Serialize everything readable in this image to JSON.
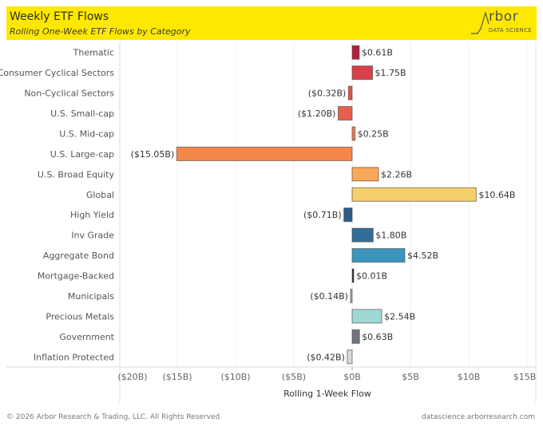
{
  "header": {
    "title": "Weekly ETF Flows",
    "subtitle": "Rolling One-Week ETF Flows by Category",
    "logo_word": "rbor",
    "logo_sub": "DATA SCIENCE",
    "banner_color": "#ffe800"
  },
  "footer": {
    "copyright": "© 2026 Arbor Research & Trading, LLC. All Rights Reserved",
    "url": "datascience.arborresearch.com"
  },
  "chart_data": {
    "type": "bar",
    "orientation": "horizontal",
    "title": "Weekly ETF Flows",
    "subtitle": "Rolling One-Week ETF Flows by Category",
    "xlabel": "Rolling 1-Week Flow",
    "ylabel": "",
    "xlim": [
      -20,
      15
    ],
    "units": "billions USD",
    "grid": "vertical",
    "xticks": [
      -20,
      -15,
      -10,
      -5,
      0,
      5,
      10,
      15
    ],
    "xtick_labels": [
      "($20B)",
      "($15B)",
      "($10B)",
      "($5B)",
      "$0B",
      "$5B",
      "$10B",
      "$15B"
    ],
    "categories": [
      "Thematic",
      "Consumer Cyclical Sectors",
      "Non-Cyclical Sectors",
      "U.S. Small-cap",
      "U.S. Mid-cap",
      "U.S. Large-cap",
      "U.S. Broad Equity",
      "Global",
      "High Yield",
      "Inv Grade",
      "Aggregate Bond",
      "Mortgage-Backed",
      "Municipals",
      "Precious Metals",
      "Government",
      "Inflation Protected"
    ],
    "values": [
      0.61,
      1.75,
      -0.32,
      -1.2,
      0.25,
      -15.05,
      2.26,
      10.64,
      -0.71,
      1.8,
      4.52,
      0.01,
      -0.14,
      2.54,
      0.63,
      -0.42
    ],
    "labels": [
      "$0.61B",
      "$1.75B",
      "($0.32B)",
      "($1.20B)",
      "$0.25B",
      "($15.05B)",
      "$2.26B",
      "$10.64B",
      "($0.71B)",
      "$1.80B",
      "$4.52B",
      "$0.01B",
      "($0.14B)",
      "$2.54B",
      "$0.63B",
      "($0.42B)"
    ],
    "colors": [
      "#b5203a",
      "#d9414a",
      "#e0544e",
      "#e8604a",
      "#ef7a52",
      "#f4874a",
      "#f9a85a",
      "#f5d06a",
      "#2e5b8a",
      "#326e98",
      "#3a95bf",
      "#333333",
      "#7fb9c9",
      "#9fd8d4",
      "#6e7585",
      "#d9d9d9"
    ]
  }
}
